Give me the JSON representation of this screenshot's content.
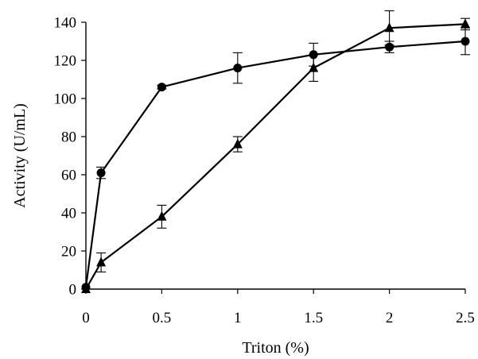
{
  "chart_data": {
    "type": "line",
    "title": "",
    "xlabel": "Triton (%)",
    "ylabel": "Activity (U/mL)",
    "xlim": [
      0,
      2.5
    ],
    "ylim": [
      0,
      140
    ],
    "xticks": [
      0,
      0.5,
      1,
      1.5,
      2,
      2.5
    ],
    "xtick_labels": [
      "0",
      "0.5",
      "1",
      "1.5",
      "2",
      "2.5"
    ],
    "yticks": [
      0,
      20,
      40,
      60,
      80,
      100,
      120,
      140
    ],
    "ytick_labels": [
      "0",
      "20",
      "40",
      "60",
      "80",
      "100",
      "120",
      "140"
    ],
    "grid": false,
    "legend": "none",
    "color": "#000000",
    "series": [
      {
        "marker": "circle",
        "x": [
          0,
          0.1,
          0.5,
          1,
          1.5,
          2,
          2.5
        ],
        "y": [
          1,
          61,
          106,
          116,
          123,
          127,
          130
        ],
        "err": [
          0,
          3,
          1,
          8,
          6,
          3,
          7
        ]
      },
      {
        "marker": "triangle",
        "x": [
          0,
          0.1,
          0.5,
          1,
          1.5,
          2,
          2.5
        ],
        "y": [
          0,
          14,
          38,
          76,
          116,
          137,
          139
        ],
        "err": [
          0,
          5,
          6,
          4,
          7,
          9,
          3
        ]
      }
    ]
  }
}
